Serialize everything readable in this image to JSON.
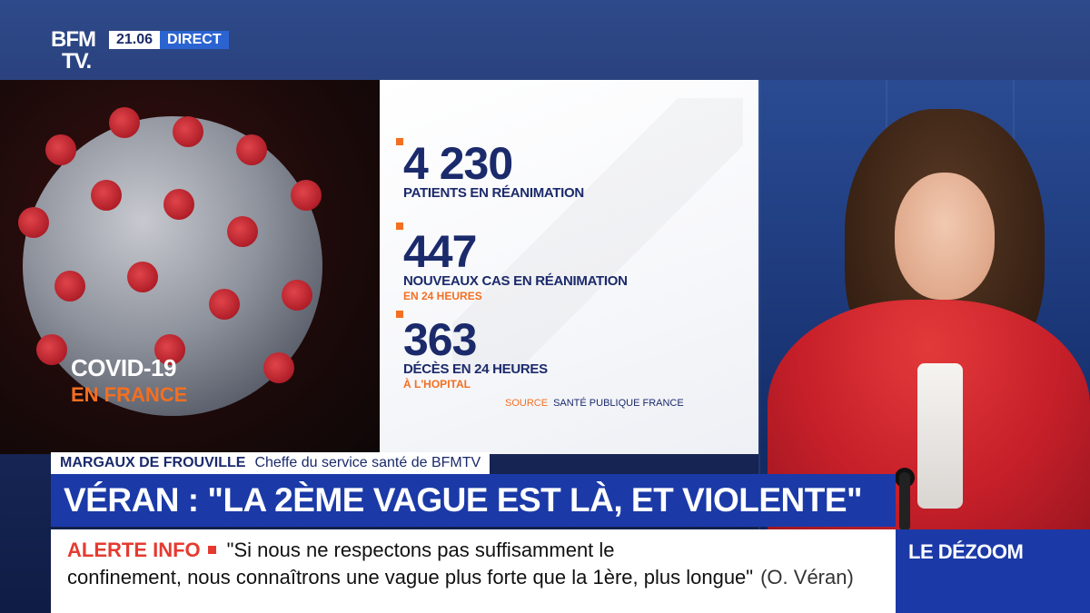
{
  "channel": {
    "logo_line1": "BFM",
    "logo_line2": "TV.",
    "time": "21.06",
    "live_label": "DIRECT"
  },
  "topic": {
    "title": "COVID-19",
    "subtitle": "EN FRANCE"
  },
  "stats": [
    {
      "value": "4 230",
      "label": "PATIENTS EN RÉANIMATION",
      "sublabel": ""
    },
    {
      "value": "447",
      "label": "NOUVEAUX CAS EN RÉANIMATION",
      "sublabel": "EN 24 HEURES"
    },
    {
      "value": "363",
      "label": "DÉCÈS EN 24 HEURES",
      "sublabel": "À L'HOPITAL"
    }
  ],
  "source": {
    "key": "SOURCE",
    "value": "SANTÉ PUBLIQUE FRANCE"
  },
  "lower_third": {
    "name": "MARGAUX DE FROUVILLE",
    "role": "Cheffe du service santé de BFMTV"
  },
  "headline": "VÉRAN : \"LA 2ÈME VAGUE EST LÀ, ET VIOLENTE\"",
  "alert": {
    "tag": "ALERTE INFO",
    "line1": "\"Si nous ne respectons pas suffisamment le",
    "line2": "confinement, nous connaîtrons une vague plus forte que la 1ère, plus longue\"",
    "attribution": "(O. Véran)"
  },
  "program": "LE DÉZOOM",
  "colors": {
    "navy": "#1b2a6b",
    "accent_orange": "#f36f21",
    "headline_blue": "#1b3aa8",
    "alert_red": "#e53a30"
  }
}
